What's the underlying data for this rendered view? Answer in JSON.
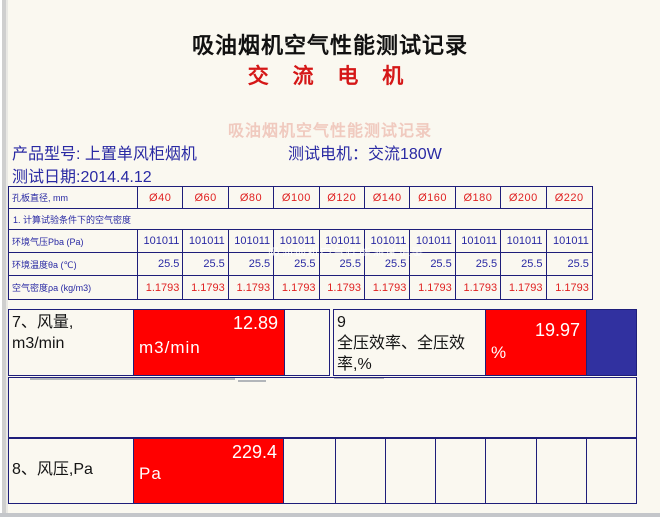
{
  "page": {
    "title": "吸油烟机空气性能测试记录",
    "subtitle": "交  流  电  机",
    "watermark": "吸油烟机空气性能测试记录"
  },
  "info": {
    "product": "产品型号: 上置单风柜烟机",
    "motor": "测试电机：交流180W",
    "date": "测试日期:2014.4.12"
  },
  "table": {
    "header_label": "孔板直径, mm",
    "columns": [
      "Ø40",
      "Ø60",
      "Ø80",
      "Ø100",
      "Ø120",
      "Ø140",
      "Ø160",
      "Ø180",
      "Ø200",
      "Ø220"
    ],
    "note": "1. 计算试验条件下的空气密度",
    "rows": [
      {
        "label": "环境气压Pba (Pa)",
        "color": "navy",
        "values": [
          "101011",
          "101011",
          "101011",
          "101011",
          "101011",
          "101011",
          "101011",
          "101011",
          "101011",
          "101011"
        ]
      },
      {
        "label": "环境温度θa (℃)",
        "color": "navy",
        "values": [
          "25.5",
          "25.5",
          "25.5",
          "25.5",
          "25.5",
          "25.5",
          "25.5",
          "25.5",
          "25.5",
          "25.5"
        ]
      },
      {
        "label": "空气密度ρa (kg/m3)",
        "color": "red",
        "values": [
          "1.1793",
          "1.1793",
          "1.1793",
          "1.1793",
          "1.1793",
          "1.1793",
          "1.1793",
          "1.1793",
          "1.1793",
          "1.1793"
        ]
      }
    ]
  },
  "metrics": {
    "airflow": {
      "label": "7、风量,\nm3/min",
      "value": "12.89",
      "unit": "m3/min"
    },
    "efficiency": {
      "label": "9\n全压效率、全压效\n率,%",
      "value": "19.97",
      "unit": "%"
    },
    "pressure": {
      "label": "8、风压,Pa",
      "value": "229.4",
      "unit": "Pa"
    }
  },
  "colors": {
    "red_fill": "#ff0000",
    "blue_fill": "#3131a0",
    "border_navy": "#1e1e7a",
    "text_navy": "#2929a3",
    "text_red": "#e02222"
  }
}
